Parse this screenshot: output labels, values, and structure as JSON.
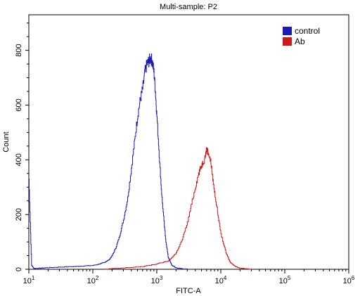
{
  "chart_data": {
    "type": "line",
    "title": "Multi-sample: P2",
    "xlabel": "FITC-A",
    "ylabel": "Count",
    "x_scale": "log",
    "xlim": [
      10,
      1000000
    ],
    "ylim": [
      0,
      930
    ],
    "x_ticks": [
      {
        "value": 10,
        "base": "10",
        "exp": "1"
      },
      {
        "value": 100,
        "base": "10",
        "exp": "2"
      },
      {
        "value": 1000,
        "base": "10",
        "exp": "3"
      },
      {
        "value": 10000,
        "base": "10",
        "exp": "4"
      },
      {
        "value": 100000,
        "base": "10",
        "exp": "5"
      },
      {
        "value": 1000000,
        "base": "10",
        "exp": "6"
      }
    ],
    "y_ticks": [
      0,
      200,
      400,
      600,
      800
    ],
    "legend_position": "top-right",
    "series": [
      {
        "name": "control",
        "color": "#1a1ab4",
        "x": [
          10,
          11,
          12,
          15,
          20,
          30,
          50,
          70,
          100,
          130,
          150,
          180,
          200,
          230,
          260,
          300,
          350,
          400,
          450,
          500,
          550,
          600,
          650,
          700,
          750,
          800,
          850,
          900,
          950,
          1000,
          1100,
          1200,
          1350,
          1500,
          1700,
          2000,
          2500,
          3000
        ],
        "y": [
          330,
          15,
          3,
          4,
          6,
          8,
          10,
          12,
          14,
          20,
          25,
          35,
          50,
          80,
          120,
          180,
          260,
          370,
          470,
          560,
          620,
          660,
          720,
          750,
          760,
          772,
          760,
          720,
          650,
          560,
          400,
          260,
          120,
          45,
          15,
          5,
          2,
          0
        ]
      },
      {
        "name": "Ab",
        "color": "#cc1a1a",
        "x": [
          150,
          300,
          600,
          1000,
          1500,
          2000,
          2500,
          3000,
          3500,
          4000,
          4500,
          5000,
          5500,
          6000,
          6500,
          7000,
          7500,
          8000,
          9000,
          10000,
          12000,
          14000,
          17000,
          20000,
          25000,
          30000
        ],
        "y": [
          0,
          5,
          10,
          20,
          30,
          60,
          110,
          170,
          240,
          300,
          350,
          380,
          400,
          440,
          420,
          390,
          330,
          280,
          200,
          130,
          60,
          25,
          10,
          4,
          2,
          0
        ]
      }
    ]
  }
}
